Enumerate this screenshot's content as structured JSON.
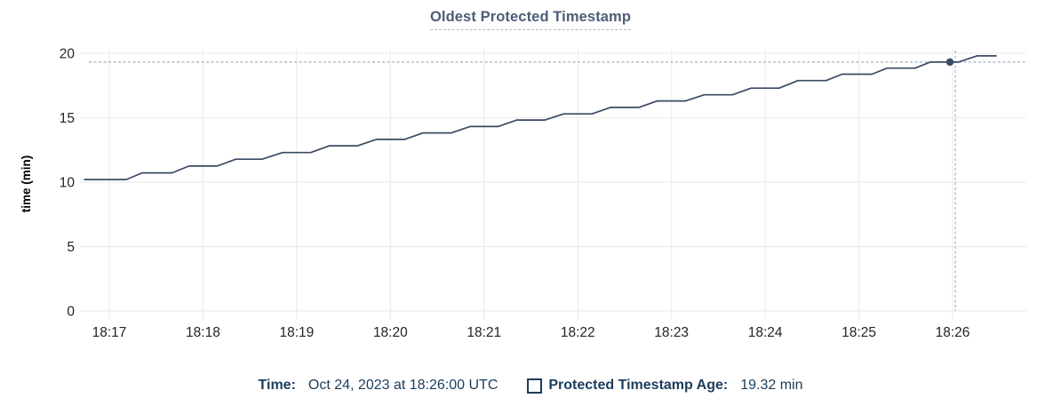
{
  "header": {
    "title": "Oldest Protected Timestamp"
  },
  "chart_data": {
    "type": "line",
    "title": "Oldest Protected Timestamp",
    "xlabel": "",
    "ylabel": "time (min)",
    "ylim": [
      0,
      20
    ],
    "yticks": [
      0,
      5,
      10,
      15,
      20
    ],
    "xlim_minutes": [
      -0.313,
      9.787
    ],
    "xticks": [
      {
        "t": 0,
        "label": "18:17"
      },
      {
        "t": 1,
        "label": "18:18"
      },
      {
        "t": 2,
        "label": "18:19"
      },
      {
        "t": 3,
        "label": "18:20"
      },
      {
        "t": 4,
        "label": "18:21"
      },
      {
        "t": 5,
        "label": "18:22"
      },
      {
        "t": 6,
        "label": "18:23"
      },
      {
        "t": 7,
        "label": "18:24"
      },
      {
        "t": 8,
        "label": "18:25"
      },
      {
        "t": 9,
        "label": "18:26"
      }
    ],
    "grid": true,
    "legend_position": "bottom",
    "series": [
      {
        "name": "Protected Timestamp Age",
        "units": "min",
        "points": [
          [
            -0.27,
            10.2
          ],
          [
            0.18,
            10.2
          ],
          [
            0.35,
            10.72
          ],
          [
            0.67,
            10.72
          ],
          [
            0.85,
            11.25
          ],
          [
            1.15,
            11.25
          ],
          [
            1.35,
            11.78
          ],
          [
            1.63,
            11.78
          ],
          [
            1.85,
            12.3
          ],
          [
            2.15,
            12.3
          ],
          [
            2.35,
            12.82
          ],
          [
            2.65,
            12.82
          ],
          [
            2.85,
            13.32
          ],
          [
            3.15,
            13.32
          ],
          [
            3.35,
            13.82
          ],
          [
            3.65,
            13.82
          ],
          [
            3.85,
            14.32
          ],
          [
            4.15,
            14.32
          ],
          [
            4.35,
            14.82
          ],
          [
            4.65,
            14.82
          ],
          [
            4.85,
            15.3
          ],
          [
            5.15,
            15.3
          ],
          [
            5.35,
            15.8
          ],
          [
            5.65,
            15.8
          ],
          [
            5.85,
            16.3
          ],
          [
            6.15,
            16.3
          ],
          [
            6.35,
            16.78
          ],
          [
            6.65,
            16.78
          ],
          [
            6.85,
            17.3
          ],
          [
            7.15,
            17.3
          ],
          [
            7.35,
            17.88
          ],
          [
            7.65,
            17.88
          ],
          [
            7.82,
            18.38
          ],
          [
            8.14,
            18.38
          ],
          [
            8.3,
            18.85
          ],
          [
            8.6,
            18.85
          ],
          [
            8.76,
            19.32
          ],
          [
            9.06,
            19.32
          ],
          [
            9.26,
            19.8
          ],
          [
            9.47,
            19.8
          ]
        ]
      }
    ],
    "hover": {
      "t": 9.0,
      "value": 19.32,
      "time_label": "Oct 24, 2023 at 18:26:00 UTC",
      "value_label": "19.32 min"
    }
  },
  "legend": {
    "time_label": "Time:",
    "time_value": "Oct 24, 2023 at 18:26:00 UTC",
    "series_label": "Protected Timestamp Age:",
    "series_value": "19.32 min"
  },
  "colors": {
    "line": "#3a4a63",
    "dot": "#3a4a63",
    "grid": "#efefef",
    "crosshair": "#9fb3c2",
    "title": "#4e5d78",
    "title_underline": "#a9bdd1",
    "axis_text": "#242424",
    "ylabel_text": "#000000",
    "legend_text": "#1c3d5c"
  }
}
